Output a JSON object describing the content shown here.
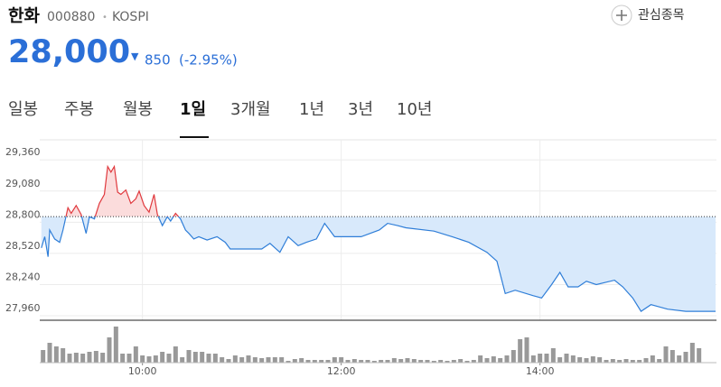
{
  "header": {
    "name": "한화",
    "code": "000880",
    "separator": "•",
    "market": "KOSPI",
    "watch": "관심종목"
  },
  "quote": {
    "price": "28,000",
    "arrow": "▼",
    "change": "850",
    "change_pct": "(-2.95%)"
  },
  "tabs": [
    "일봉",
    "주봉",
    "월봉",
    "1일",
    "3개월",
    "1년",
    "3년",
    "10년"
  ],
  "selected_tab": 3,
  "chart_data": {
    "type": "line",
    "x": [
      539,
      541,
      543,
      544,
      547,
      550,
      552,
      555,
      557,
      560,
      563,
      566,
      568,
      571,
      574,
      577,
      579,
      581,
      583,
      585,
      587,
      590,
      593,
      596,
      598,
      601,
      604,
      607,
      609,
      612,
      615,
      617,
      620,
      623,
      626,
      628,
      631,
      634,
      639,
      645,
      650,
      653,
      661,
      672,
      677,
      683,
      688,
      694,
      699,
      705,
      710,
      716,
      721,
      732,
      743,
      748,
      754,
      759,
      776,
      787,
      797,
      808,
      814,
      819,
      825,
      836,
      841,
      847,
      852,
      857,
      863,
      868,
      874,
      885,
      890,
      896,
      901,
      907,
      912,
      917,
      928,
      946
    ],
    "values": [
      28570,
      28670,
      28490,
      28730,
      28650,
      28620,
      28730,
      28930,
      28880,
      28950,
      28870,
      28700,
      28850,
      28830,
      28970,
      29050,
      29300,
      29250,
      29300,
      29070,
      29050,
      29090,
      28970,
      29010,
      29080,
      28950,
      28890,
      29050,
      28870,
      28770,
      28850,
      28810,
      28880,
      28830,
      28730,
      28700,
      28650,
      28670,
      28640,
      28670,
      28620,
      28560,
      28560,
      28560,
      28610,
      28530,
      28670,
      28590,
      28620,
      28650,
      28790,
      28670,
      28670,
      28670,
      28730,
      28790,
      28770,
      28750,
      28720,
      28670,
      28620,
      28530,
      28450,
      28160,
      28190,
      28140,
      28120,
      28240,
      28350,
      28220,
      28220,
      28270,
      28240,
      28280,
      28220,
      28120,
      28000,
      28060,
      28040,
      28020,
      28000,
      28000
    ],
    "reference": 28850,
    "up_color": "#e0393e",
    "down_color": "#2f7ed8",
    "up_fill": "#fbdcdc",
    "down_fill": "#d8e9fb",
    "xlim": [
      538,
      946
    ],
    "xticks": [
      {
        "value": 600,
        "label": "10:00"
      },
      {
        "value": 720,
        "label": "12:00"
      },
      {
        "value": 840,
        "label": "14:00"
      }
    ],
    "ylim": [
      27920,
      29540
    ],
    "yticks": [
      {
        "value": 27960,
        "label": "27,960"
      },
      {
        "value": 28240,
        "label": "28,240"
      },
      {
        "value": 28520,
        "label": "28,520"
      },
      {
        "value": 28800,
        "label": "28,800"
      },
      {
        "value": 29080,
        "label": "29,080"
      },
      {
        "value": 29360,
        "label": "29,360"
      }
    ],
    "grid": true,
    "volume": {
      "color": "#999999",
      "x": [
        540,
        544,
        548,
        552,
        556,
        560,
        564,
        568,
        572,
        576,
        580,
        584,
        588,
        592,
        596,
        600,
        604,
        608,
        612,
        616,
        620,
        624,
        628,
        632,
        636,
        640,
        644,
        648,
        652,
        656,
        660,
        664,
        668,
        672,
        676,
        680,
        684,
        688,
        692,
        696,
        700,
        704,
        708,
        712,
        716,
        720,
        724,
        728,
        732,
        736,
        740,
        744,
        748,
        752,
        756,
        760,
        764,
        768,
        772,
        776,
        780,
        784,
        788,
        792,
        796,
        800,
        804,
        808,
        812,
        816,
        820,
        824,
        828,
        832,
        836,
        840,
        844,
        848,
        852,
        856,
        860,
        864,
        868,
        872,
        876,
        880,
        884,
        888,
        892,
        896,
        900,
        904,
        908,
        912,
        916,
        920,
        924,
        928,
        932,
        936
      ],
      "values": [
        14,
        22,
        18,
        16,
        10,
        11,
        10,
        12,
        13,
        11,
        28,
        40,
        10,
        10,
        18,
        8,
        7,
        8,
        12,
        10,
        18,
        6,
        14,
        12,
        12,
        10,
        10,
        6,
        4,
        8,
        6,
        8,
        6,
        5,
        6,
        6,
        6,
        2,
        4,
        5,
        3,
        3,
        3,
        3,
        6,
        6,
        3,
        4,
        3,
        3,
        2,
        3,
        3,
        5,
        4,
        5,
        4,
        3,
        3,
        2,
        3,
        2,
        3,
        4,
        2,
        3,
        8,
        5,
        7,
        5,
        8,
        14,
        26,
        28,
        8,
        10,
        10,
        16,
        6,
        10,
        8,
        6,
        5,
        7,
        6,
        3,
        4,
        3,
        4,
        3,
        3,
        5,
        8,
        4,
        18,
        14,
        8,
        12,
        22,
        16
      ]
    }
  }
}
